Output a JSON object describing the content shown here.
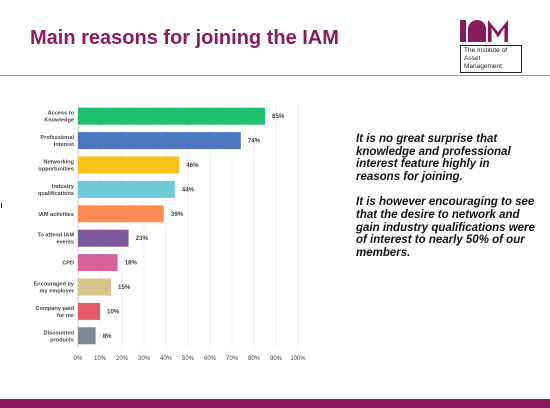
{
  "title": "Main reasons for joining the IAM",
  "logo": {
    "line1": "The Institute of",
    "line2": "Asset Management"
  },
  "colors": {
    "brand": "#8b1a5c"
  },
  "side_text": {
    "p1": "It is no great surprise that knowledge and professional interest feature highly in reasons for joining.",
    "p2": "It is however encouraging to see that the desire to network and gain industry qualifications were of interest to nearly 50% of our members."
  },
  "chart_data": {
    "type": "bar",
    "orientation": "horizontal",
    "categories": [
      [
        "Access to",
        "Knowledge"
      ],
      [
        "Professional",
        "Interest"
      ],
      [
        "Networking",
        "opportunities"
      ],
      [
        "Industry",
        "qualifications"
      ],
      [
        "IAM activities"
      ],
      [
        "To attend IAM",
        "events"
      ],
      [
        "CPD"
      ],
      [
        "Encouraged by",
        "my employer"
      ],
      [
        "Company paid",
        "for me"
      ],
      [
        "Discounted",
        "products"
      ]
    ],
    "values": [
      85,
      74,
      46,
      44,
      39,
      23,
      18,
      15,
      10,
      8
    ],
    "value_labels": [
      "85%",
      "74%",
      "46%",
      "44%",
      "39%",
      "23%",
      "18%",
      "15%",
      "10%",
      "8%"
    ],
    "bar_colors": [
      "#1fbf72",
      "#4f78c0",
      "#f7c21a",
      "#6ccbd6",
      "#f98d55",
      "#7a5a9a",
      "#d9629a",
      "#d7c48b",
      "#e25a6a",
      "#7d8792"
    ],
    "xticks": [
      "0%",
      "10%",
      "20%",
      "30%",
      "40%",
      "50%",
      "60%",
      "70%",
      "80%",
      "90%",
      "100%"
    ],
    "xlim": [
      0,
      100
    ],
    "grid": true
  }
}
